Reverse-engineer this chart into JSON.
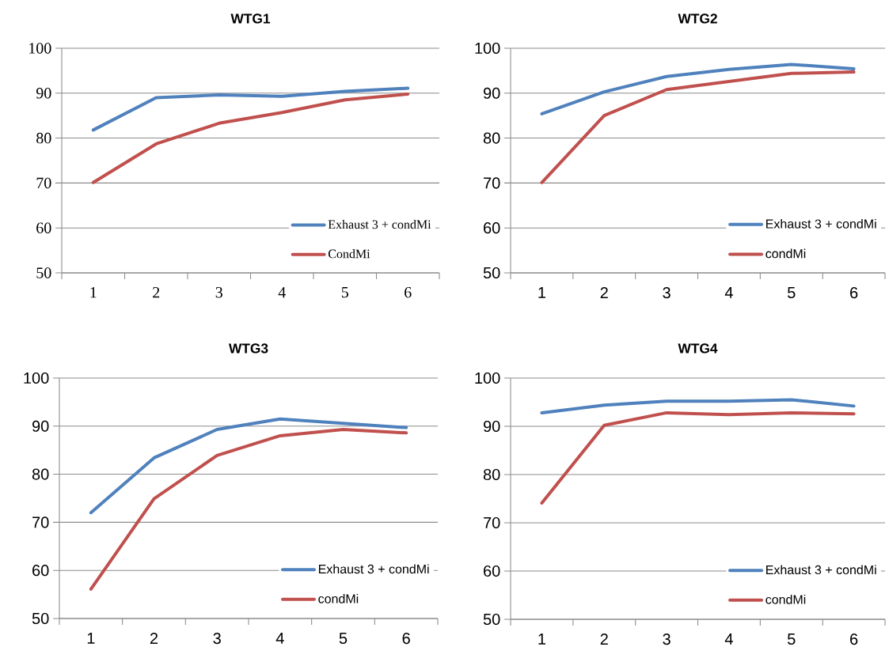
{
  "chart_data": [
    {
      "type": "line",
      "title": "WTG1",
      "categories": [
        "1",
        "2",
        "3",
        "4",
        "5",
        "6"
      ],
      "series": [
        {
          "name": "Exhaust 3 + condMi",
          "color": "#4f81bd",
          "values": [
            81.8,
            89.0,
            89.6,
            89.3,
            90.4,
            91.1
          ]
        },
        {
          "name": "CondMi",
          "color": "#c0504d",
          "values": [
            70.1,
            78.7,
            83.3,
            85.7,
            88.5,
            89.8
          ]
        }
      ],
      "ylim": [
        50,
        100
      ],
      "yticks": [
        50,
        60,
        70,
        80,
        90,
        100
      ],
      "grid": "y",
      "legend": "bottom right"
    },
    {
      "type": "line",
      "title": "WTG2",
      "categories": [
        "1",
        "2",
        "3",
        "4",
        "5",
        "6"
      ],
      "series": [
        {
          "name": "Exhaust 3 + condMi",
          "color": "#4f81bd",
          "values": [
            85.4,
            90.3,
            93.7,
            95.3,
            96.4,
            95.4
          ]
        },
        {
          "name": "condMi",
          "color": "#c0504d",
          "values": [
            70.1,
            85.0,
            90.8,
            92.6,
            94.4,
            94.7
          ]
        }
      ],
      "ylim": [
        50,
        100
      ],
      "yticks": [
        50,
        60,
        70,
        80,
        90,
        100
      ],
      "grid": "y",
      "legend": "bottom right"
    },
    {
      "type": "line",
      "title": "WTG3",
      "categories": [
        "1",
        "2",
        "3",
        "4",
        "5",
        "6"
      ],
      "series": [
        {
          "name": "Exhaust 3 + condMi",
          "color": "#4f81bd",
          "values": [
            72.0,
            83.4,
            89.3,
            91.5,
            90.6,
            89.7
          ]
        },
        {
          "name": "condMi",
          "color": "#c0504d",
          "values": [
            56.1,
            74.9,
            83.9,
            88.0,
            89.3,
            88.6
          ]
        }
      ],
      "ylim": [
        50,
        100
      ],
      "yticks": [
        50,
        60,
        70,
        80,
        90,
        100
      ],
      "grid": "y",
      "legend": "bottom right"
    },
    {
      "type": "line",
      "title": "WTG4",
      "categories": [
        "1",
        "2",
        "3",
        "4",
        "5",
        "6"
      ],
      "series": [
        {
          "name": "Exhaust 3 + condMi",
          "color": "#4f81bd",
          "values": [
            92.8,
            94.4,
            95.2,
            95.2,
            95.5,
            94.2
          ]
        },
        {
          "name": "condMi",
          "color": "#c0504d",
          "values": [
            74.1,
            90.2,
            92.8,
            92.4,
            92.8,
            92.6
          ]
        }
      ],
      "ylim": [
        50,
        100
      ],
      "yticks": [
        50,
        60,
        70,
        80,
        90,
        100
      ],
      "grid": "y",
      "legend": "bottom right"
    }
  ]
}
